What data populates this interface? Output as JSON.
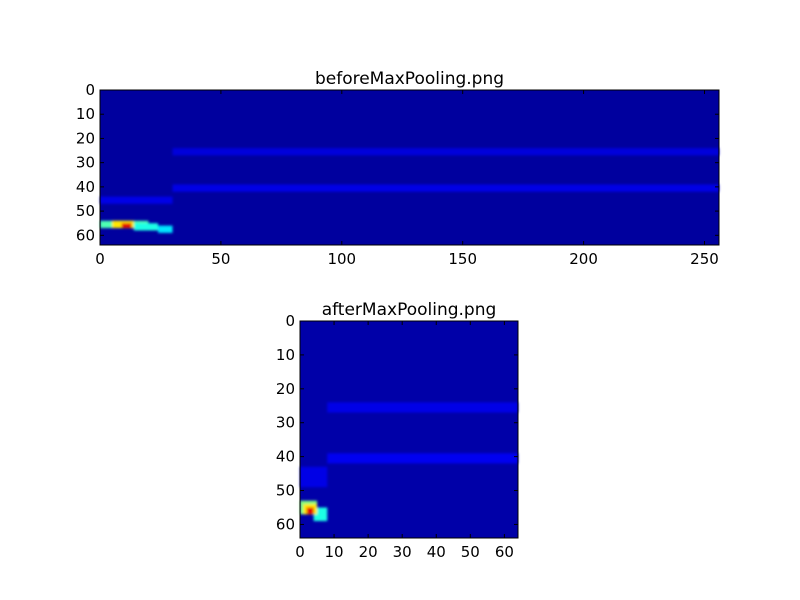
{
  "chart_data": [
    {
      "type": "heatmap",
      "title": "beforeMaxPooling.png",
      "colormap": "jet",
      "shape": [
        64,
        256
      ],
      "xlim": [
        0,
        256
      ],
      "ylim": [
        64,
        0
      ],
      "xticks": [
        0,
        50,
        100,
        150,
        200,
        250
      ],
      "yticks": [
        0,
        10,
        20,
        30,
        40,
        50,
        60
      ],
      "background_value": 0.03,
      "features": [
        {
          "rows": [
            44,
            46
          ],
          "cols": [
            0,
            30
          ],
          "value": 0.1
        },
        {
          "rows": [
            24,
            26
          ],
          "cols": [
            30,
            256
          ],
          "value": 0.09
        },
        {
          "rows": [
            39,
            41
          ],
          "cols": [
            30,
            256
          ],
          "value": 0.1
        },
        {
          "rows": [
            54,
            56
          ],
          "cols": [
            0,
            20
          ],
          "value": 0.45
        },
        {
          "rows": [
            55,
            57
          ],
          "cols": [
            14,
            24
          ],
          "value": 0.4
        },
        {
          "rows": [
            56,
            58
          ],
          "cols": [
            24,
            30
          ],
          "value": 0.35
        },
        {
          "rows": [
            54,
            56
          ],
          "cols": [
            5,
            14
          ],
          "value": 0.65
        },
        {
          "rows": [
            55,
            56
          ],
          "cols": [
            9,
            13
          ],
          "value": 0.9
        }
      ]
    },
    {
      "type": "heatmap",
      "title": "afterMaxPooling.png",
      "colormap": "jet",
      "shape": [
        64,
        64
      ],
      "xlim": [
        0,
        64
      ],
      "ylim": [
        64,
        0
      ],
      "xticks": [
        0,
        10,
        20,
        30,
        40,
        50,
        60
      ],
      "yticks": [
        0,
        10,
        20,
        30,
        40,
        50,
        60
      ],
      "background_value": 0.04,
      "features": [
        {
          "rows": [
            43,
            48
          ],
          "cols": [
            0,
            8
          ],
          "value": 0.1
        },
        {
          "rows": [
            24,
            26
          ],
          "cols": [
            8,
            64
          ],
          "value": 0.1
        },
        {
          "rows": [
            39,
            41
          ],
          "cols": [
            8,
            64
          ],
          "value": 0.11
        },
        {
          "rows": [
            53,
            56
          ],
          "cols": [
            0,
            5
          ],
          "value": 0.5
        },
        {
          "rows": [
            55,
            58
          ],
          "cols": [
            4,
            8
          ],
          "value": 0.4
        },
        {
          "rows": [
            54,
            56
          ],
          "cols": [
            1,
            5
          ],
          "value": 0.65
        },
        {
          "rows": [
            55,
            56
          ],
          "cols": [
            2,
            4
          ],
          "value": 0.9
        }
      ]
    }
  ]
}
